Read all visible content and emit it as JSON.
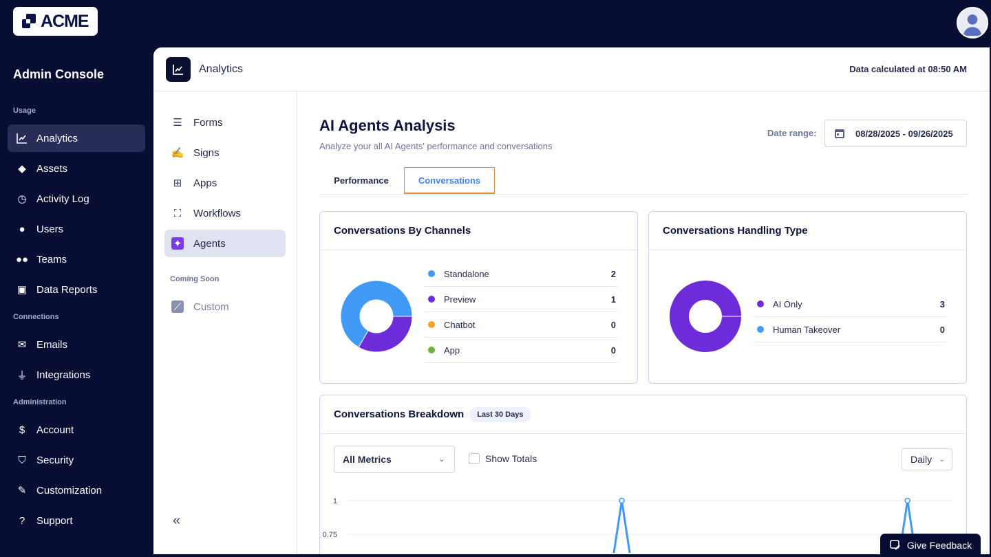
{
  "brand": {
    "logo_text": "ACME"
  },
  "sidebar": {
    "title": "Admin Console",
    "sections": [
      {
        "label": "Usage",
        "items": [
          {
            "label": "Analytics",
            "icon": "chart-line-icon",
            "active": true
          },
          {
            "label": "Assets",
            "icon": "shapes-icon"
          },
          {
            "label": "Activity Log",
            "icon": "history-icon"
          },
          {
            "label": "Users",
            "icon": "user-icon"
          },
          {
            "label": "Teams",
            "icon": "users-icon"
          },
          {
            "label": "Data Reports",
            "icon": "folder-search-icon"
          }
        ]
      },
      {
        "label": "Connections",
        "items": [
          {
            "label": "Emails",
            "icon": "envelope-icon"
          },
          {
            "label": "Integrations",
            "icon": "plug-icon"
          }
        ]
      },
      {
        "label": "Administration",
        "items": [
          {
            "label": "Account",
            "icon": "invoice-icon"
          },
          {
            "label": "Security",
            "icon": "shield-icon"
          },
          {
            "label": "Customization",
            "icon": "brush-icon"
          },
          {
            "label": "Support",
            "icon": "support-icon"
          }
        ]
      }
    ]
  },
  "header": {
    "title": "Analytics",
    "calculated": "Data calculated at 08:50 AM"
  },
  "subnav": {
    "items": [
      {
        "label": "Forms",
        "icon": "form-icon"
      },
      {
        "label": "Signs",
        "icon": "sign-icon"
      },
      {
        "label": "Apps",
        "icon": "apps-icon"
      },
      {
        "label": "Workflows",
        "icon": "workflow-icon"
      },
      {
        "label": "Agents",
        "icon": "agent-icon",
        "active": true
      }
    ],
    "coming_soon_label": "Coming Soon",
    "coming_soon": [
      {
        "label": "Custom",
        "icon": "custom-chart-icon"
      }
    ],
    "collapse": "«"
  },
  "main": {
    "title": "AI Agents Analysis",
    "description": "Analyze your all AI Agents' performance and conversations",
    "date_range_label": "Date range:",
    "date_range_value": "08/28/2025 - 09/26/2025",
    "tabs": [
      {
        "label": "Performance"
      },
      {
        "label": "Conversations",
        "active": true
      }
    ]
  },
  "colors": {
    "blue": "#4099f5",
    "purple": "#6d2bd9",
    "orange": "#f0a030",
    "green": "#6cb33f",
    "accent_tab": "#e08a3c"
  },
  "channels": {
    "title": "Conversations By Channels",
    "items": [
      {
        "label": "Standalone",
        "value": 2,
        "color": "#4099f5"
      },
      {
        "label": "Preview",
        "value": 1,
        "color": "#6d2bd9"
      },
      {
        "label": "Chatbot",
        "value": 0,
        "color": "#f0a030"
      },
      {
        "label": "App",
        "value": 0,
        "color": "#6cb33f"
      }
    ]
  },
  "handling": {
    "title": "Conversations Handling Type",
    "items": [
      {
        "label": "AI Only",
        "value": 3,
        "color": "#6d2bd9"
      },
      {
        "label": "Human Takeover",
        "value": 0,
        "color": "#4099f5"
      }
    ]
  },
  "breakdown": {
    "title": "Conversations Breakdown",
    "badge": "Last 30 Days",
    "metric_select": "All Metrics",
    "show_totals": "Show Totals",
    "show_totals_checked": false,
    "interval": "Daily"
  },
  "chart_data": {
    "type": "line",
    "yticks": [
      "1",
      "0.75"
    ],
    "ylim": [
      0,
      1
    ],
    "series": [
      {
        "color": "#4099f5",
        "values": [
          0,
          0,
          0,
          0,
          0,
          0,
          0,
          0,
          0,
          0,
          0,
          0,
          0,
          1,
          0,
          0,
          0,
          0,
          0,
          0,
          0,
          0,
          0,
          0,
          0,
          0,
          0,
          1,
          0,
          0
        ]
      }
    ]
  },
  "feedback": {
    "label": "Give Feedback"
  }
}
